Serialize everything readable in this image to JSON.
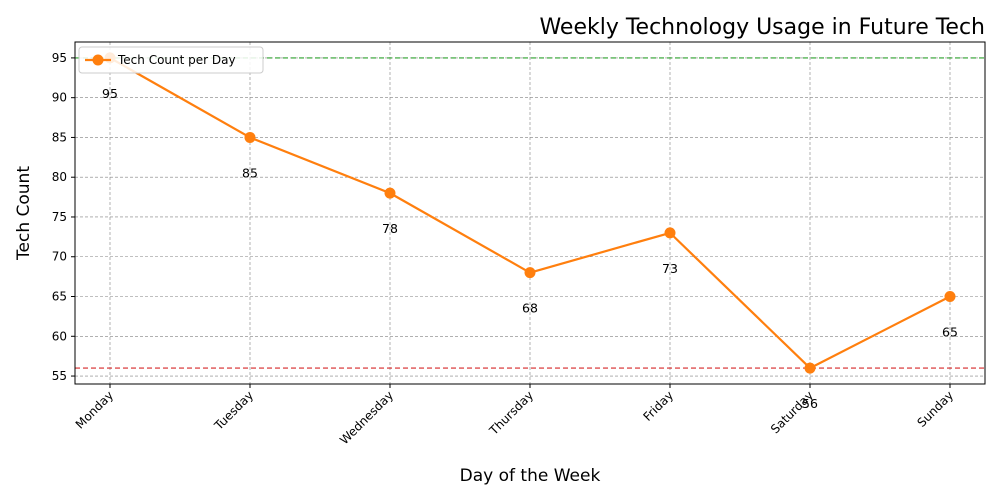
{
  "chart_data": {
    "type": "line",
    "title": "Weekly Technology Usage in Future Tech",
    "xlabel": "Day of the Week",
    "ylabel": "Tech Count",
    "categories": [
      "Monday",
      "Tuesday",
      "Wednesday",
      "Thursday",
      "Friday",
      "Saturday",
      "Sunday"
    ],
    "series": [
      {
        "name": "Tech Count per Day",
        "values": [
          95,
          85,
          78,
          68,
          73,
          56,
          65
        ],
        "color": "#ff7f0e"
      }
    ],
    "ylim": [
      54,
      97
    ],
    "yticks": [
      55,
      60,
      65,
      70,
      75,
      80,
      85,
      90,
      95
    ],
    "reference_lines": [
      {
        "value": 95,
        "color": "#2ca02c"
      },
      {
        "value": 56,
        "color": "#d62728"
      }
    ],
    "grid": true,
    "legend_position": "top-left",
    "data_labels": true
  }
}
